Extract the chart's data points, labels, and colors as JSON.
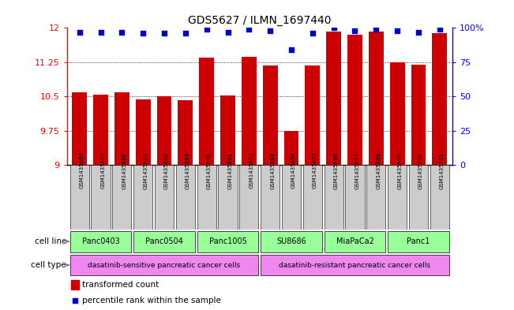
{
  "title": "GDS5627 / ILMN_1697440",
  "samples": [
    "GSM1435684",
    "GSM1435685",
    "GSM1435686",
    "GSM1435687",
    "GSM1435688",
    "GSM1435689",
    "GSM1435690",
    "GSM1435691",
    "GSM1435692",
    "GSM1435693",
    "GSM1435694",
    "GSM1435695",
    "GSM1435696",
    "GSM1435697",
    "GSM1435698",
    "GSM1435699",
    "GSM1435700",
    "GSM1435701"
  ],
  "bar_values": [
    10.6,
    10.55,
    10.6,
    10.43,
    10.5,
    10.42,
    11.35,
    10.52,
    11.37,
    11.18,
    9.75,
    11.18,
    11.92,
    11.85,
    11.92,
    11.25,
    11.2,
    11.88
  ],
  "percentile_values": [
    97,
    97,
    97,
    96,
    96,
    96,
    99,
    97,
    99,
    98,
    84,
    96,
    100,
    98,
    99,
    98,
    97,
    99
  ],
  "y_min": 9.0,
  "y_max": 12.0,
  "y_ticks": [
    9,
    9.75,
    10.5,
    11.25,
    12
  ],
  "y_right_ticks": [
    0,
    25,
    50,
    75,
    100
  ],
  "bar_color": "#cc0000",
  "percentile_color": "#0000cc",
  "cell_lines": [
    {
      "name": "Panc0403",
      "start": 0,
      "end": 2
    },
    {
      "name": "Panc0504",
      "start": 3,
      "end": 5
    },
    {
      "name": "Panc1005",
      "start": 6,
      "end": 8
    },
    {
      "name": "SU8686",
      "start": 9,
      "end": 11
    },
    {
      "name": "MiaPaCa2",
      "start": 12,
      "end": 14
    },
    {
      "name": "Panc1",
      "start": 15,
      "end": 17
    }
  ],
  "cell_type_groups": [
    {
      "name": "dasatinib-sensitive pancreatic cancer cells",
      "start": 0,
      "end": 8
    },
    {
      "name": "dasatinib-resistant pancreatic cancer cells",
      "start": 9,
      "end": 17
    }
  ],
  "cell_line_color": "#99ff99",
  "cell_type_color": "#ee88ee",
  "gsm_box_color": "#cccccc",
  "background_color": "#ffffff"
}
